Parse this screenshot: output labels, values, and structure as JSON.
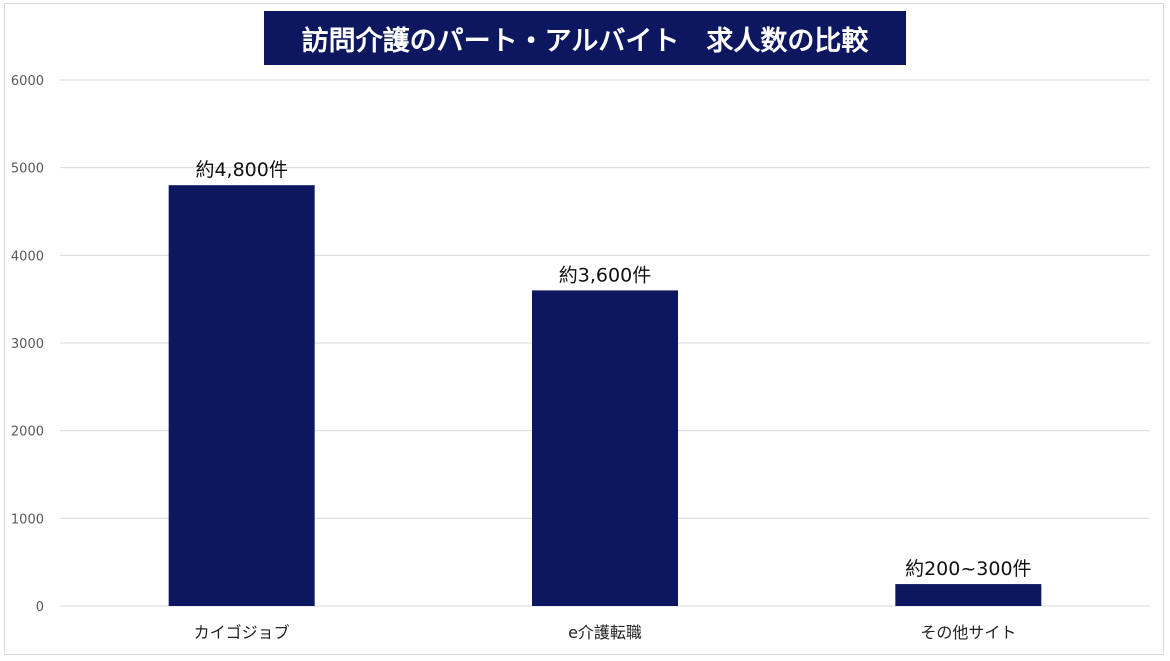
{
  "chart_data": {
    "type": "bar",
    "title": "訪問介護のパート・アルバイト　求人数の比較",
    "categories": [
      "カイゴジョブ",
      "e介護転職",
      "その他サイト"
    ],
    "values": [
      4800,
      3600,
      250
    ],
    "data_labels": [
      "約4,800件",
      "約3,600件",
      "約200~300件"
    ],
    "ylim": [
      0,
      6000
    ],
    "yticks": [
      "0",
      "1000",
      "2000",
      "3000",
      "4000",
      "5000",
      "6000"
    ],
    "grid": true,
    "legend": "none",
    "colors": {
      "bar": "#0c1760",
      "title_bg": "#0c1760",
      "grid": "#d9d9d9"
    }
  }
}
